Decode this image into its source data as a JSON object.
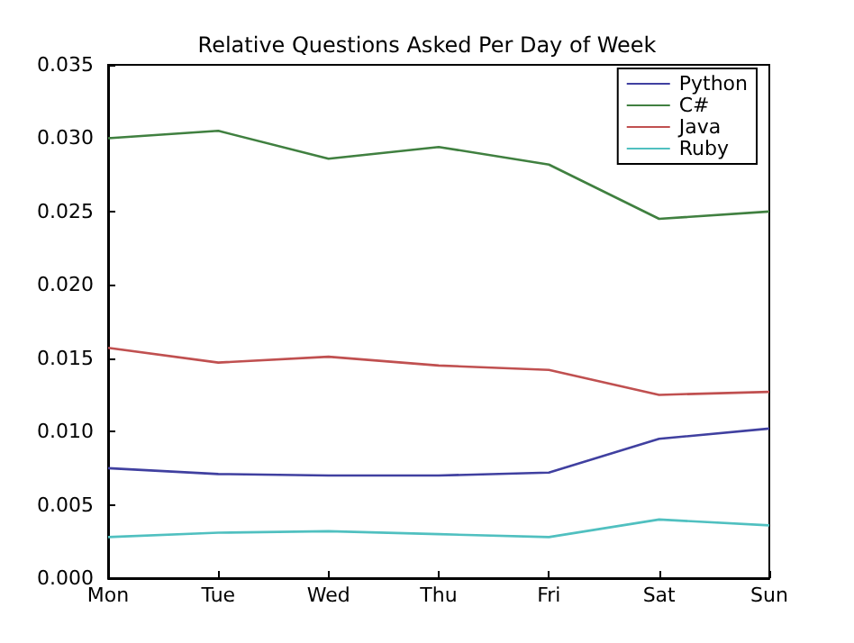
{
  "chart_data": {
    "type": "line",
    "title": "Relative Questions Asked Per Day of Week",
    "categories": [
      "Mon",
      "Tue",
      "Wed",
      "Thu",
      "Fri",
      "Sat",
      "Sun"
    ],
    "series": [
      {
        "name": "Python",
        "color": "#4040a0",
        "values": [
          0.0075,
          0.0071,
          0.007,
          0.007,
          0.0072,
          0.0095,
          0.0102
        ]
      },
      {
        "name": "C#",
        "color": "#408040",
        "values": [
          0.03,
          0.0305,
          0.0286,
          0.0294,
          0.0282,
          0.0245,
          0.025
        ]
      },
      {
        "name": "Java",
        "color": "#c05050",
        "values": [
          0.0157,
          0.0147,
          0.0151,
          0.0145,
          0.0142,
          0.0125,
          0.0127
        ]
      },
      {
        "name": "Ruby",
        "color": "#50c0c0",
        "values": [
          0.0028,
          0.0031,
          0.0032,
          0.003,
          0.0028,
          0.004,
          0.0036
        ]
      }
    ],
    "ylim": [
      0,
      0.035
    ],
    "yticks": [
      {
        "value": 0,
        "label": "0.000"
      },
      {
        "value": 0.005,
        "label": "0.005"
      },
      {
        "value": 0.01,
        "label": "0.010"
      },
      {
        "value": 0.015,
        "label": "0.015"
      },
      {
        "value": 0.02,
        "label": "0.020"
      },
      {
        "value": 0.025,
        "label": "0.025"
      },
      {
        "value": 0.03,
        "label": "0.030"
      },
      {
        "value": 0.035,
        "label": "0.035"
      }
    ],
    "grid": false,
    "legend": "top right",
    "marker": "none",
    "line_style": "solid"
  }
}
